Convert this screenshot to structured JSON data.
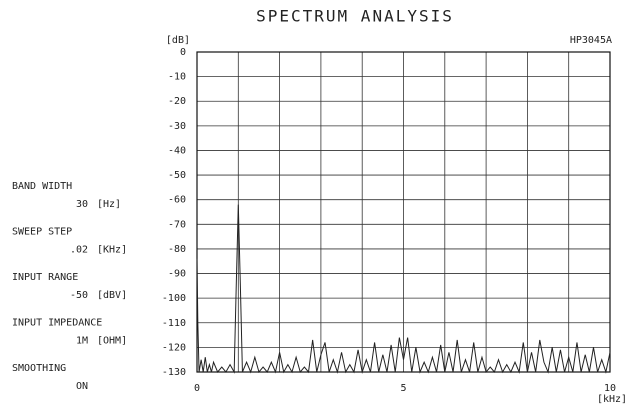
{
  "header": {
    "model": "HP3045A"
  },
  "settings": [
    {
      "label": "BAND WIDTH",
      "value": "30",
      "unit": "[Hz]"
    },
    {
      "label": "SWEEP STEP",
      "value": ".02",
      "unit": "[KHz]"
    },
    {
      "label": "INPUT RANGE",
      "value": "-50",
      "unit": "[dBV]"
    },
    {
      "label": "INPUT IMPEDANCE",
      "value": "1M",
      "unit": "[OHM]"
    },
    {
      "label": "SMOOTHING",
      "value": "ON"
    }
  ],
  "chart_data": {
    "type": "line",
    "title": "SPECTRUM ANALYSIS",
    "x_label": "[kHz]",
    "y_label": "[dB]",
    "color": "#222222",
    "grid": true,
    "xlim": [
      0,
      10
    ],
    "xticks": [
      0,
      5,
      10
    ],
    "x_minor_ticks": [
      1,
      2,
      3,
      4,
      6,
      7,
      8,
      9
    ],
    "ylim": [
      -130,
      0
    ],
    "yticks": [
      0,
      -10,
      -20,
      -30,
      -40,
      -50,
      -60,
      -70,
      -80,
      -90,
      -100,
      -110,
      -120,
      -130
    ],
    "x": [
      0,
      0.02,
      0.05,
      0.1,
      0.15,
      0.2,
      0.25,
      0.3,
      0.35,
      0.4,
      0.5,
      0.6,
      0.7,
      0.8,
      0.9,
      0.95,
      1.0,
      1.05,
      1.1,
      1.2,
      1.3,
      1.4,
      1.5,
      1.6,
      1.7,
      1.8,
      1.9,
      2.0,
      2.1,
      2.2,
      2.3,
      2.4,
      2.5,
      2.6,
      2.7,
      2.8,
      2.9,
      3.0,
      3.1,
      3.2,
      3.3,
      3.4,
      3.5,
      3.6,
      3.7,
      3.8,
      3.9,
      4.0,
      4.1,
      4.2,
      4.3,
      4.4,
      4.5,
      4.6,
      4.7,
      4.8,
      4.9,
      5.0,
      5.1,
      5.2,
      5.3,
      5.4,
      5.5,
      5.6,
      5.7,
      5.8,
      5.9,
      6.0,
      6.1,
      6.2,
      6.3,
      6.4,
      6.5,
      6.6,
      6.7,
      6.8,
      6.9,
      7.0,
      7.1,
      7.2,
      7.3,
      7.4,
      7.5,
      7.6,
      7.7,
      7.8,
      7.9,
      8.0,
      8.1,
      8.2,
      8.3,
      8.4,
      8.5,
      8.6,
      8.7,
      8.8,
      8.9,
      9.0,
      9.1,
      9.2,
      9.3,
      9.4,
      9.5,
      9.6,
      9.7,
      9.8,
      9.9,
      10.0
    ],
    "values": [
      -84,
      -110,
      -130,
      -125,
      -130,
      -124,
      -130,
      -127,
      -130,
      -126,
      -130,
      -128,
      -130,
      -127,
      -130,
      -95,
      -62,
      -95,
      -130,
      -126,
      -130,
      -124,
      -130,
      -128,
      -130,
      -126,
      -130,
      -122,
      -130,
      -127,
      -130,
      -124,
      -130,
      -128,
      -130,
      -117,
      -130,
      -123,
      -118,
      -130,
      -125,
      -130,
      -122,
      -130,
      -127,
      -130,
      -121,
      -130,
      -125,
      -130,
      -118,
      -130,
      -123,
      -130,
      -119,
      -130,
      -116,
      -125,
      -116,
      -130,
      -120,
      -130,
      -126,
      -130,
      -124,
      -130,
      -119,
      -130,
      -122,
      -130,
      -117,
      -130,
      -125,
      -130,
      -118,
      -130,
      -124,
      -130,
      -128,
      -130,
      -125,
      -130,
      -127,
      -130,
      -126,
      -130,
      -118,
      -130,
      -122,
      -130,
      -117,
      -126,
      -130,
      -120,
      -130,
      -121,
      -130,
      -124,
      -130,
      -118,
      -130,
      -123,
      -130,
      -120,
      -130,
      -125,
      -130,
      -122
    ]
  }
}
